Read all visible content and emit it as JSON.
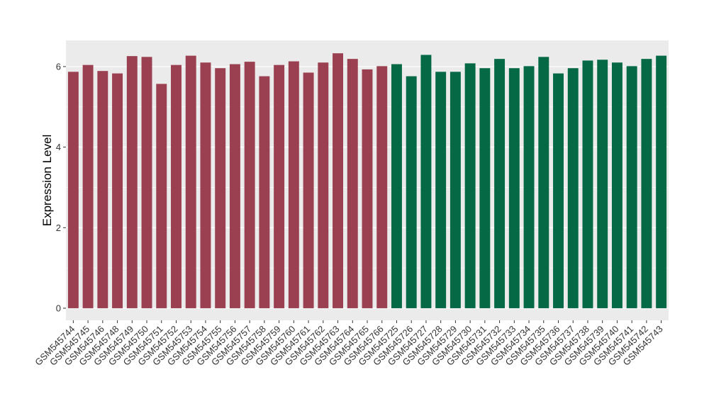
{
  "chart_data": {
    "type": "bar",
    "title": "",
    "xlabel": "",
    "ylabel": "Expression Level",
    "ylim": [
      -0.3,
      6.65
    ],
    "yticks": [
      0,
      2,
      4,
      6
    ],
    "grid": true,
    "legend": "none",
    "categories": [
      "GSM545744",
      "GSM545745",
      "GSM545746",
      "GSM545748",
      "GSM545749",
      "GSM545750",
      "GSM545751",
      "GSM545752",
      "GSM545753",
      "GSM545754",
      "GSM545755",
      "GSM545756",
      "GSM545757",
      "GSM545758",
      "GSM545759",
      "GSM545760",
      "GSM545761",
      "GSM545762",
      "GSM545763",
      "GSM545764",
      "GSM545765",
      "GSM545766",
      "GSM545725",
      "GSM545726",
      "GSM545727",
      "GSM545728",
      "GSM545729",
      "GSM545730",
      "GSM545731",
      "GSM545732",
      "GSM545733",
      "GSM545734",
      "GSM545735",
      "GSM545736",
      "GSM545737",
      "GSM545738",
      "GSM545739",
      "GSM545740",
      "GSM545741",
      "GSM545742",
      "GSM545743"
    ],
    "values": [
      5.87,
      6.04,
      5.89,
      5.83,
      6.26,
      6.24,
      5.57,
      6.04,
      6.27,
      6.1,
      5.96,
      6.06,
      6.12,
      5.76,
      6.04,
      6.13,
      5.85,
      6.1,
      6.33,
      6.19,
      5.93,
      6.01,
      6.06,
      5.76,
      6.29,
      5.87,
      5.87,
      6.08,
      5.96,
      6.19,
      5.96,
      6.01,
      6.24,
      5.83,
      5.96,
      6.15,
      6.17,
      6.1,
      6.01,
      6.19,
      6.27
    ],
    "groups": [
      0,
      0,
      0,
      0,
      0,
      0,
      0,
      0,
      0,
      0,
      0,
      0,
      0,
      0,
      0,
      0,
      0,
      0,
      0,
      0,
      0,
      0,
      1,
      1,
      1,
      1,
      1,
      1,
      1,
      1,
      1,
      1,
      1,
      1,
      1,
      1,
      1,
      1,
      1,
      1,
      1
    ],
    "group_colors": [
      "#9a4050",
      "#056946"
    ],
    "panel_color": "#ebebeb",
    "grid_color": "#ffffff"
  }
}
